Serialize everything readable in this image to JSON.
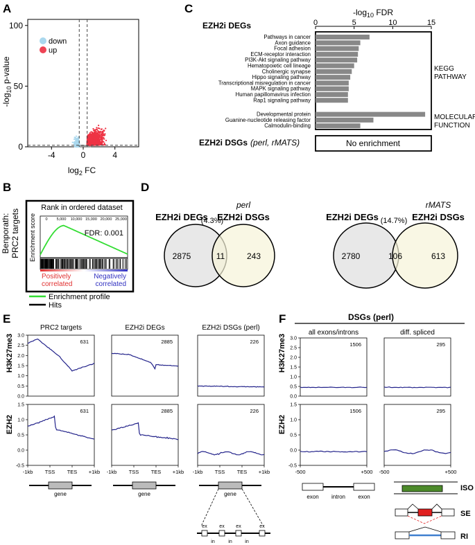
{
  "panels": {
    "A": "A",
    "B": "B",
    "C": "C",
    "D": "D",
    "E": "E",
    "F": "F"
  },
  "chart_data": [
    {
      "id": "A",
      "type": "scatter",
      "xlabel": "log2 FC",
      "ylabel": "-log10 p-value",
      "xlim": [
        -7,
        7
      ],
      "ylim": [
        0,
        105
      ],
      "xticks": [
        -4,
        0,
        4
      ],
      "yticks": [
        0,
        50,
        100
      ],
      "thresholds": {
        "fc": [
          -0.5,
          0.5
        ],
        "p": 1.3
      },
      "legend": [
        {
          "label": "down",
          "color": "#aad8ee"
        },
        {
          "label": "up",
          "color": "#ee3344"
        }
      ],
      "labels": {
        "xbase": "log",
        "xsub": "2",
        "xrest": " FC",
        "ypre": "-log",
        "ysub": "10",
        "yrest": " p-value",
        "legend_down": "down",
        "legend_up": "up"
      }
    },
    {
      "id": "B",
      "type": "gsea",
      "ylabel": "Benporath: PRC2 targets",
      "title": "Rank in ordered dataset",
      "inner_ylabel": "Enrichment score",
      "fdr": "FDR: 0.001",
      "xticks": [
        "0",
        "5,000",
        "10,000",
        "15,000",
        "20,000",
        "25,000"
      ],
      "neg_label": [
        "Positively",
        "correlated"
      ],
      "pos_label": [
        "Negatively",
        "correlated"
      ],
      "legend": [
        {
          "label": "Enrichment profile",
          "color": "#33dd33"
        },
        {
          "label": "Hits",
          "color": "#000000"
        }
      ]
    },
    {
      "id": "C",
      "type": "bar",
      "title": "EZH2i DEGs",
      "xlabel": "-log10 FDR",
      "xlim": [
        0,
        15
      ],
      "xticks": [
        0,
        5,
        10,
        15
      ],
      "axis_label": {
        "pre": "-log",
        "sub": "10",
        "rest": " FDR"
      },
      "groups": [
        {
          "name": "KEGG PATHWAY",
          "name_lines": [
            "KEGG",
            "PATHWAY"
          ],
          "categories": [
            "Pathways in cancer",
            "Axon guidance",
            "Focal adhesion",
            "ECM-receptor interaction",
            "PI3K-Akt signaling pathway",
            "Hematopoietic cell lineage",
            "Cholinergic synapse",
            "Hippo signaling pathway",
            "Transcriptional misregulation in cancer",
            "MAPK signaling pathway",
            "Human papillomavirus infection",
            "Rap1 signaling pathway"
          ],
          "values": [
            7.0,
            5.8,
            5.6,
            5.5,
            5.4,
            5.0,
            4.7,
            4.5,
            4.3,
            4.3,
            4.2,
            4.2
          ]
        },
        {
          "name": "MOLECULAR FUNCTION",
          "name_lines": [
            "MOLECULAR",
            "FUNCTION"
          ],
          "categories": [
            "Developmental protein",
            "Guanine-nucleotide releasing factor",
            "Calmodulin-binding"
          ],
          "values": [
            14.2,
            7.5,
            5.8
          ]
        }
      ],
      "dsg_title": "EZH2i DSGs",
      "dsg_paren": "(perl, rMATS)",
      "dsg_result": "No enrichment"
    },
    {
      "id": "D",
      "type": "venn",
      "pairs": [
        {
          "left": "EZH2i DEGs",
          "right_tool": "perl",
          "right": "EZH2i DSGs",
          "pct": "(4.3%)",
          "only_left": 2875,
          "overlap": 11,
          "only_right": 243
        },
        {
          "left": "EZH2i DEGs",
          "right_tool": "rMATS",
          "right": "EZH2i DSGs",
          "pct": "(14.7%)",
          "only_left": 2780,
          "overlap": 106,
          "only_right": 613
        }
      ]
    },
    {
      "id": "E",
      "type": "line",
      "columns": [
        {
          "title": "PRC2 targets",
          "counts": [
            631,
            631
          ]
        },
        {
          "title": "EZH2i DEGs",
          "counts": [
            2885,
            2885
          ]
        },
        {
          "title": "EZH2i DSGs (perl)",
          "counts": [
            226,
            226
          ]
        }
      ],
      "rows": [
        "H3K27me3",
        "EZH2"
      ],
      "ylim": [
        0,
        3
      ],
      "yticks": [
        "0.0",
        "0.5",
        "1.0",
        "1.5",
        "2.0",
        "2.5",
        "3.0"
      ],
      "ylim2": [
        -0.5,
        1.5
      ],
      "yticks2": [
        "-0.5",
        "0.0",
        "0.5",
        "1.0",
        "1.5"
      ],
      "xticks": [
        "-1kb",
        "TSS",
        "TES",
        "+1kb"
      ],
      "gene_label": "gene",
      "exon_label": "ex",
      "intron_label": "in"
    },
    {
      "id": "F",
      "type": "line",
      "header": "DSGs (perl)",
      "columns": [
        {
          "title": "all exons/introns",
          "counts": [
            1506,
            1506
          ]
        },
        {
          "title": "diff. spliced",
          "counts": [
            295,
            295
          ]
        }
      ],
      "rows": [
        "H3K27me3",
        "EZH2"
      ],
      "xticks": [
        "-500",
        "+500"
      ],
      "diagram_labels": [
        "exon",
        "intron",
        "exon"
      ],
      "events": [
        "ISO",
        "SE",
        "RI"
      ]
    }
  ]
}
